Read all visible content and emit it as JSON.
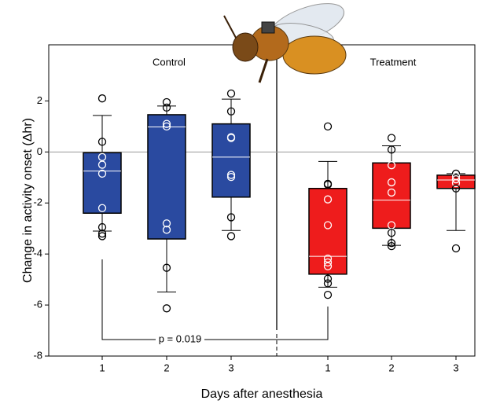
{
  "chart_data": {
    "type": "box",
    "ylabel": "Change in activity onset (Δhr)",
    "xlabel": "Days after anesthesia",
    "ylim": [
      -8,
      4.2
    ],
    "yticks": [
      -8,
      -6,
      -4,
      -2,
      0,
      2
    ],
    "annotation": "p = 0.019",
    "panels": [
      {
        "title": "Control",
        "color": "#2a4aa0",
        "boxes": [
          {
            "category": "1",
            "q1": -2.4,
            "median": -0.75,
            "q3": -0.03,
            "whisker_low": -3.1,
            "whisker_high": 1.43,
            "points": [
              2.1,
              0.4,
              -0.2,
              -0.5,
              -0.85,
              -2.2,
              -2.95,
              -3.2,
              -3.3
            ]
          },
          {
            "category": "2",
            "q1": -3.41,
            "median": 0.98,
            "q3": 1.46,
            "whisker_low": -5.49,
            "whisker_high": 1.8,
            "points": [
              1.95,
              1.74,
              1.1,
              1.0,
              -2.8,
              -3.05,
              -4.54,
              -6.13
            ]
          },
          {
            "category": "3",
            "q1": -1.77,
            "median": -0.2,
            "q3": 1.1,
            "whisker_low": -3.08,
            "whisker_high": 2.07,
            "points": [
              2.29,
              1.59,
              0.58,
              0.55,
              -0.9,
              -0.98,
              -2.56,
              -3.3
            ]
          }
        ]
      },
      {
        "title": "Treatment",
        "color": "#ee1c1c",
        "boxes": [
          {
            "category": "1",
            "q1": -4.79,
            "median": -4.09,
            "q3": -1.43,
            "whisker_low": -5.3,
            "whisker_high": -0.37,
            "points": [
              1.0,
              -1.25,
              -1.28,
              -1.86,
              -2.87,
              -4.18,
              -4.33,
              -4.48,
              -4.97,
              -5.15,
              -5.6
            ]
          },
          {
            "category": "2",
            "q1": -2.99,
            "median": -1.89,
            "q3": -0.43,
            "whisker_low": -3.66,
            "whisker_high": 0.24,
            "points": [
              0.55,
              0.09,
              -0.52,
              -1.19,
              -1.59,
              -2.87,
              -3.17,
              -3.57,
              -3.69
            ]
          },
          {
            "category": "3",
            "q1": -1.43,
            "median": -1.1,
            "q3": -0.91,
            "whisker_low": -3.08,
            "whisker_high": -0.85,
            "points": [
              -0.85,
              -0.95,
              -1.07,
              -1.22,
              -1.43,
              -3.78
            ]
          }
        ]
      }
    ]
  }
}
